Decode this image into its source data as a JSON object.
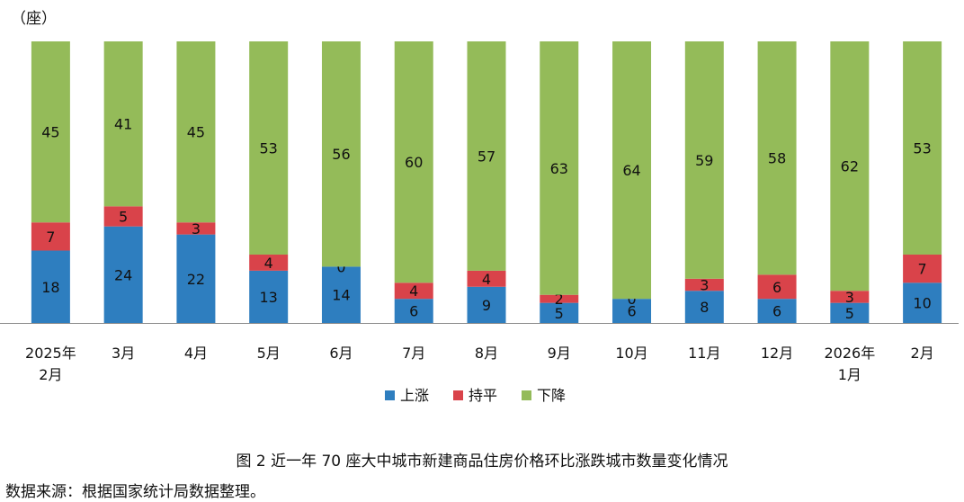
{
  "chart_data": {
    "type": "bar",
    "stacked": true,
    "unit": "（座）",
    "categories": [
      "2025年\n2月",
      "3月",
      "4月",
      "5月",
      "6月",
      "7月",
      "8月",
      "9月",
      "10月",
      "11月",
      "12月",
      "2026年\n1月",
      "2月"
    ],
    "series": [
      {
        "name": "上涨",
        "color": "#2e7ebf",
        "values": [
          18,
          24,
          22,
          13,
          14,
          6,
          9,
          5,
          6,
          8,
          6,
          5,
          10
        ]
      },
      {
        "name": "持平",
        "color": "#d9434a",
        "values": [
          7,
          5,
          3,
          4,
          0,
          4,
          4,
          2,
          0,
          3,
          6,
          3,
          7
        ]
      },
      {
        "name": "下降",
        "color": "#94bb59",
        "values": [
          45,
          41,
          45,
          53,
          56,
          60,
          57,
          63,
          64,
          59,
          58,
          62,
          53
        ]
      }
    ],
    "ylim": [
      0,
      70
    ],
    "grid": false,
    "legend_position": "bottom-center",
    "data_labels": true
  },
  "caption": "图 2 近一年 70 座大中城市新建商品住房价格环比涨跌城市数量变化情况",
  "source": "数据来源：根据国家统计局数据整理。"
}
